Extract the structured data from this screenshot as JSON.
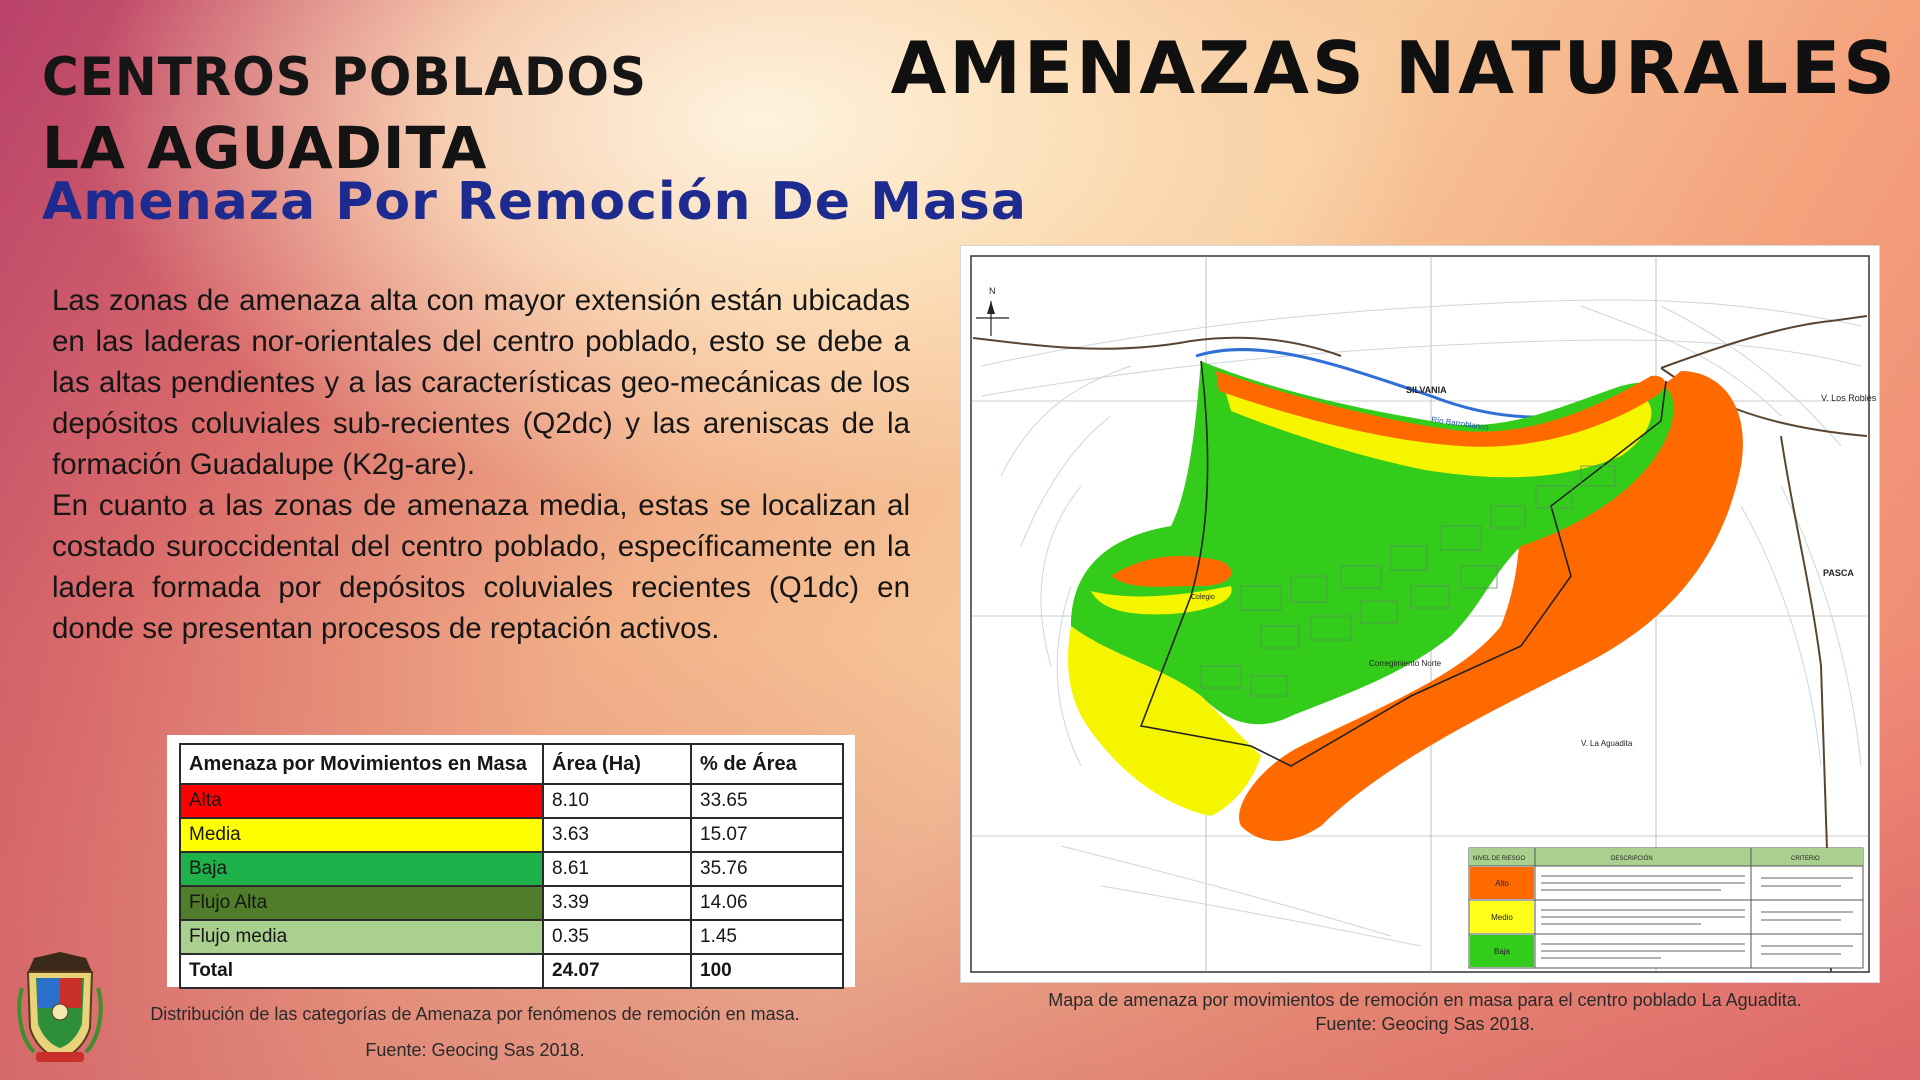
{
  "header": {
    "line1": "CENTROS POBLADOS",
    "line2": "LA AGUADITA",
    "line3": "Amenaza Por Remoción De Masa",
    "main_title": "AMENAZAS NATURALES"
  },
  "body": {
    "paragraph1": "Las zonas de amenaza alta con mayor extensión están ubicadas en las laderas nor-orientales del centro poblado, esto se debe a las altas pendientes y a las características geo-mecánicas de los depósitos coluviales sub-recientes (Q2dc) y las areniscas de la formación Guadalupe (K2g-are).",
    "paragraph2": "En cuanto a las zonas de amenaza media, estas se localizan al costado suroccidental del centro poblado, específicamente en la ladera formada por depósitos coluviales recientes (Q1dc) en donde se presentan procesos de reptación activos."
  },
  "table": {
    "headers": [
      "Amenaza por Movimientos en Masa",
      "Área (Ha)",
      "% de Área"
    ],
    "rows": [
      {
        "category": "Alta",
        "area": "8.10",
        "percent": "33.65",
        "color": "#ff0000"
      },
      {
        "category": "Media",
        "area": "3.63",
        "percent": "15.07",
        "color": "#ffff00"
      },
      {
        "category": "Baja",
        "area": "8.61",
        "percent": "35.76",
        "color": "#1fb14a"
      },
      {
        "category": "Flujo Alta",
        "area": "3.39",
        "percent": "14.06",
        "color": "#4f7d2a"
      },
      {
        "category": "Flujo media",
        "area": "0.35",
        "percent": "1.45",
        "color": "#a9d08e"
      }
    ],
    "total": {
      "category": "Total",
      "area": "24.07",
      "percent": "100"
    }
  },
  "captions": {
    "table_caption": "Distribución de las categorías de Amenaza por fenómenos de remoción en masa.",
    "table_source": "Fuente: Geocing Sas 2018.",
    "map_caption": "Mapa de amenaza por movimientos de remoción en masa para el centro poblado La Aguadita.",
    "map_source": "Fuente: Geocing Sas 2018."
  },
  "map": {
    "labels": {
      "silvania": "SILVANIA",
      "los_robles": "V. Los Robles",
      "pasca": "PASCA",
      "la_aguadita": "V. La Aguadita",
      "corregimiento": "Corregimiento Norte",
      "colegio": "Colegio",
      "north": "N",
      "river": "Río Barroblanco"
    },
    "legend": {
      "headers": [
        "NIVEL DE RIESGO",
        "DESCRIPCIÓN",
        "CRITERIO"
      ],
      "levels": [
        {
          "name": "Alto",
          "color": "#ff6a00"
        },
        {
          "name": "Medio",
          "color": "#ffff1a"
        },
        {
          "name": "Baja",
          "color": "#33cc1a"
        }
      ]
    },
    "colors": {
      "alta": "#ff6a00",
      "media": "#f5f500",
      "baja": "#33cc1a",
      "contour": "#c9d3d8"
    }
  }
}
